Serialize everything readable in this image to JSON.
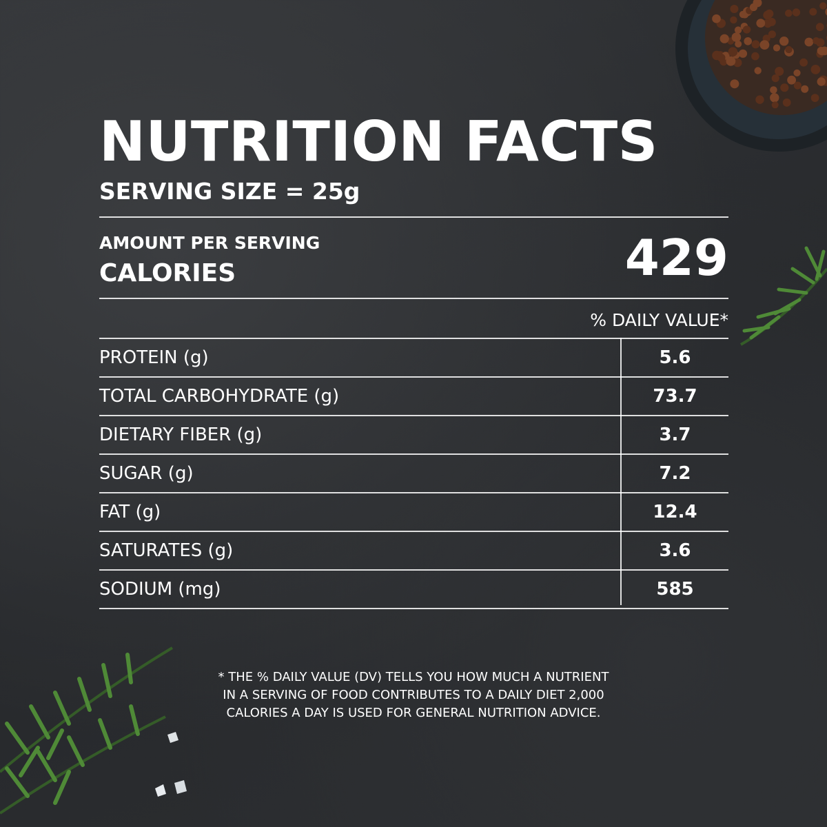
{
  "title": "NUTRITION FACTS",
  "serving_size": "SERVING SIZE = 25g",
  "amount_per_serving": "AMOUNT PER SERVING",
  "calories_label": "CALORIES",
  "calories_value": "429",
  "daily_value_header": "% DAILY VALUE*",
  "nutrients": [
    {
      "label": "PROTEIN (g)",
      "value": "5.6"
    },
    {
      "label": "TOTAL CARBOHYDRATE (g)",
      "value": "73.7"
    },
    {
      "label": "DIETARY FIBER (g)",
      "value": "3.7"
    },
    {
      "label": "SUGAR (g)",
      "value": "7.2"
    },
    {
      "label": "FAT (g)",
      "value": "12.4"
    },
    {
      "label": "SATURATES (g)",
      "value": "3.6"
    },
    {
      "label": "SODIUM (mg)",
      "value": "585"
    }
  ],
  "footnote": [
    "* THE % DAILY VALUE (DV) TELLS YOU HOW MUCH A NUTRIENT",
    "IN A SERVING OF FOOD CONTRIBUTES TO A DAILY DIET 2,000",
    "CALORIES A DAY IS USED FOR GENERAL NUTRITION ADVICE."
  ],
  "colors": {
    "text": "#ffffff",
    "slate": "#2e3033",
    "rosemary": "#3f7a2e",
    "pepper": "#6b3a22"
  }
}
